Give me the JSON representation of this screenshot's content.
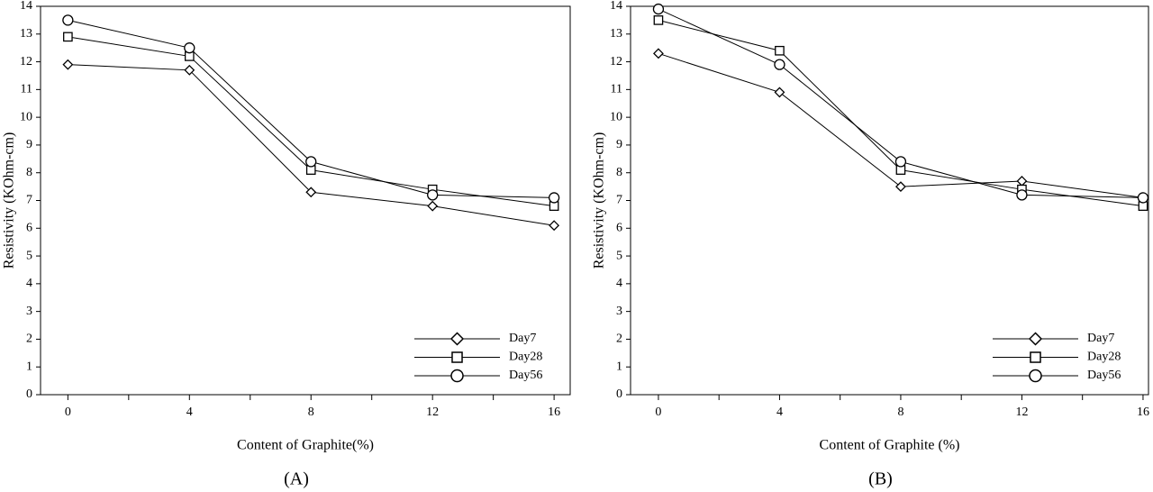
{
  "chart_data": [
    {
      "type": "line",
      "label": "(A)",
      "xlabel": "Content of Graphite(%)",
      "ylabel": "Resistivity (KOhm-cm)",
      "x": [
        0,
        4,
        8,
        12,
        16
      ],
      "series": [
        {
          "name": "Day7",
          "color": "#000000",
          "marker": "diamond",
          "values": [
            11.9,
            11.7,
            7.3,
            6.8,
            6.1
          ]
        },
        {
          "name": "Day28",
          "color": "#000000",
          "marker": "square",
          "values": [
            12.9,
            12.2,
            8.1,
            7.4,
            6.8
          ]
        },
        {
          "name": "Day56",
          "color": "#000000",
          "marker": "circle",
          "values": [
            13.5,
            12.5,
            8.4,
            7.2,
            7.1
          ]
        }
      ],
      "xlim": [
        -0.9,
        16.53
      ],
      "xticks": [
        0,
        4,
        8,
        12,
        16
      ],
      "xminorticks": [
        2,
        6,
        10,
        14
      ],
      "ylim": [
        0,
        14
      ],
      "yticks": [
        0,
        1,
        2,
        3,
        4,
        5,
        6,
        7,
        8,
        9,
        10,
        11,
        12,
        13,
        14
      ],
      "legend": "lower right",
      "grid": false
    },
    {
      "type": "line",
      "label": "(B)",
      "xlabel": "Content of Graphite (%)",
      "ylabel": "Resistivity (KOhm-cm)",
      "x": [
        0,
        4,
        8,
        12,
        16
      ],
      "series": [
        {
          "name": "Day7",
          "color": "#000000",
          "marker": "diamond",
          "values": [
            12.3,
            10.9,
            7.5,
            7.7,
            7.1
          ]
        },
        {
          "name": "Day28",
          "color": "#000000",
          "marker": "square",
          "values": [
            13.5,
            12.4,
            8.1,
            7.4,
            6.8
          ]
        },
        {
          "name": "Day56",
          "color": "#000000",
          "marker": "circle",
          "values": [
            13.9,
            11.9,
            8.4,
            7.2,
            7.1
          ]
        }
      ],
      "xlim": [
        -0.92,
        16.18
      ],
      "xticks": [
        0,
        4,
        8,
        12,
        16
      ],
      "xminorticks": [
        2,
        6,
        10,
        14
      ],
      "ylim": [
        0,
        14
      ],
      "yticks": [
        0,
        1,
        2,
        3,
        4,
        5,
        6,
        7,
        8,
        9,
        10,
        11,
        12,
        13,
        14
      ],
      "legend": "lower right",
      "grid": false
    }
  ]
}
